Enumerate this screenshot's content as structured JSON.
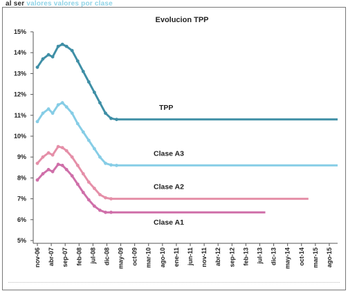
{
  "header": {
    "lead": "al ser",
    "accent": "valores valores",
    "accent2": "por clase"
  },
  "chart_data": {
    "type": "line",
    "title": "Evolucion TPP",
    "xlabel": "",
    "ylabel": "",
    "ylim": [
      5,
      15
    ],
    "y_ticks": [
      "5%",
      "6%",
      "7%",
      "8%",
      "9%",
      "10%",
      "11%",
      "12%",
      "13%",
      "14%",
      "15%"
    ],
    "categories": [
      "nov-06",
      "abr-07",
      "sep-07",
      "feb-08",
      "jul-08",
      "dic-08",
      "may-09",
      "oct-09",
      "mar-10",
      "ago-10",
      "ene-11",
      "jun-11",
      "nov-11",
      "abr-12",
      "sep-12",
      "feb-13",
      "jul-13",
      "dic-13",
      "may-14",
      "oct-14",
      "mar-15",
      "ago-15"
    ],
    "series": [
      {
        "name": "TPP",
        "color": "#3f8fa6",
        "points": [
          [
            0,
            13.3
          ],
          [
            0.4,
            13.7
          ],
          [
            0.8,
            13.9
          ],
          [
            1.1,
            13.8
          ],
          [
            1.5,
            14.3
          ],
          [
            1.8,
            14.4
          ],
          [
            2.1,
            14.3
          ],
          [
            2.5,
            14.1
          ],
          [
            2.9,
            13.6
          ],
          [
            3.3,
            13.1
          ],
          [
            3.7,
            12.6
          ],
          [
            4.1,
            12.1
          ],
          [
            4.5,
            11.6
          ],
          [
            4.9,
            11.1
          ],
          [
            5.3,
            10.85
          ],
          [
            5.7,
            10.8
          ],
          [
            21.6,
            10.8
          ]
        ]
      },
      {
        "name": "Clase A3",
        "color": "#86cde6",
        "points": [
          [
            0,
            10.7
          ],
          [
            0.4,
            11.1
          ],
          [
            0.8,
            11.3
          ],
          [
            1.1,
            11.1
          ],
          [
            1.5,
            11.5
          ],
          [
            1.8,
            11.6
          ],
          [
            2.1,
            11.4
          ],
          [
            2.5,
            11.1
          ],
          [
            2.9,
            10.6
          ],
          [
            3.3,
            10.2
          ],
          [
            3.7,
            9.8
          ],
          [
            4.1,
            9.4
          ],
          [
            4.5,
            9.0
          ],
          [
            4.9,
            8.7
          ],
          [
            5.3,
            8.62
          ],
          [
            5.7,
            8.6
          ],
          [
            21.6,
            8.6
          ]
        ]
      },
      {
        "name": "Clase A2",
        "color": "#e58fa8",
        "points": [
          [
            0,
            8.7
          ],
          [
            0.4,
            9.0
          ],
          [
            0.8,
            9.2
          ],
          [
            1.1,
            9.1
          ],
          [
            1.5,
            9.5
          ],
          [
            1.8,
            9.45
          ],
          [
            2.1,
            9.3
          ],
          [
            2.5,
            9.0
          ],
          [
            2.9,
            8.6
          ],
          [
            3.3,
            8.2
          ],
          [
            3.7,
            7.8
          ],
          [
            4.1,
            7.5
          ],
          [
            4.5,
            7.2
          ],
          [
            4.9,
            7.05
          ],
          [
            5.3,
            7.0
          ],
          [
            19.5,
            7.0
          ]
        ]
      },
      {
        "name": "Clase A1",
        "color": "#cf6fa9",
        "points": [
          [
            0,
            7.9
          ],
          [
            0.4,
            8.2
          ],
          [
            0.8,
            8.4
          ],
          [
            1.1,
            8.3
          ],
          [
            1.5,
            8.65
          ],
          [
            1.8,
            8.6
          ],
          [
            2.1,
            8.4
          ],
          [
            2.5,
            8.1
          ],
          [
            2.9,
            7.7
          ],
          [
            3.3,
            7.3
          ],
          [
            3.7,
            6.95
          ],
          [
            4.1,
            6.65
          ],
          [
            4.5,
            6.45
          ],
          [
            4.9,
            6.35
          ],
          [
            5.3,
            6.35
          ],
          [
            16.4,
            6.35
          ]
        ]
      }
    ],
    "annotations": [
      "TPP",
      "Clase A3",
      "Clase A2",
      "Clase A1"
    ],
    "grid": false,
    "legend": "none"
  }
}
